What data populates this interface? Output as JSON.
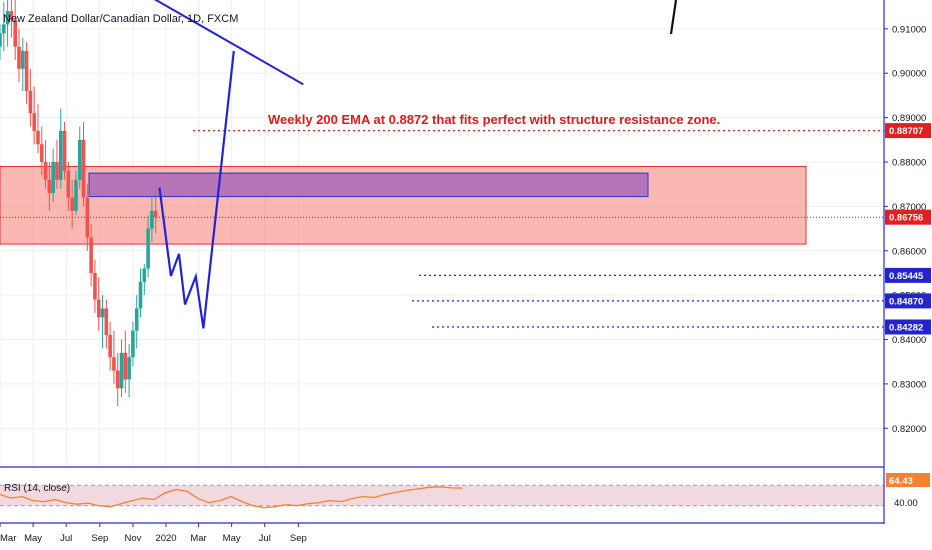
{
  "chart_data": {
    "type": "candlestick",
    "title": "New Zealand Dollar/Canadian Dollar, 1D, FXCM",
    "annotation": "Weekly 200 EMA at 0.8872 that fits perfect with structure resistance zone.",
    "x_ticks": [
      "Mar",
      "May",
      "Jul",
      "Sep",
      "Nov",
      "2020",
      "Mar",
      "May",
      "Jul",
      "Sep"
    ],
    "ylim": [
      0.8115,
      0.9165
    ],
    "y_ticks": [
      "0.91000",
      "0.90000",
      "0.89000",
      "0.88000",
      "0.87000",
      "0.86000",
      "0.85000",
      "0.84000",
      "0.83000",
      "0.82000"
    ],
    "price_badges": [
      {
        "label": "0.88707",
        "value": 0.88707,
        "color": "#e02020"
      },
      {
        "label": "0.86756",
        "value": 0.86756,
        "color": "#e02020"
      },
      {
        "label": "0.85445",
        "value": 0.85445,
        "color": "#2424cc"
      },
      {
        "label": "0.84870",
        "value": 0.8487,
        "color": "#2424cc"
      },
      {
        "label": "0.84282",
        "value": 0.84282,
        "color": "#2424cc"
      }
    ],
    "resistance_zone": {
      "from": 0.8615,
      "to": 0.879,
      "color": "#f57e74"
    },
    "purple_zone": {
      "from": 0.8722,
      "to": 0.8775,
      "color": "#9c5db8"
    },
    "support_levels": [
      0.85445,
      0.8487,
      0.84282
    ],
    "ema_level": 0.88707,
    "current_price": 0.86756,
    "projection_path": [
      {
        "date": "2019-12-20",
        "price": 0.8742
      },
      {
        "date": "2020-01-10",
        "price": 0.8543
      },
      {
        "date": "2020-01-25",
        "price": 0.8593
      },
      {
        "date": "2020-02-05",
        "price": 0.8479
      },
      {
        "date": "2020-02-25",
        "price": 0.8542
      },
      {
        "date": "2020-03-10",
        "price": 0.8425
      },
      {
        "date": "2020-05-05",
        "price": 0.905
      }
    ],
    "trendline": [
      {
        "date": "2019-11-15",
        "price": 0.9185
      },
      {
        "date": "2020-09-10",
        "price": 0.8975
      }
    ],
    "ohlc": [
      {
        "date": "2019-03-01",
        "o": 0.906,
        "h": 0.911,
        "l": 0.903,
        "c": 0.909
      },
      {
        "date": "2019-03-08",
        "o": 0.909,
        "h": 0.916,
        "l": 0.905,
        "c": 0.911
      },
      {
        "date": "2019-03-15",
        "o": 0.911,
        "h": 0.918,
        "l": 0.906,
        "c": 0.914
      },
      {
        "date": "2019-03-22",
        "o": 0.914,
        "h": 0.919,
        "l": 0.908,
        "c": 0.912
      },
      {
        "date": "2019-03-29",
        "o": 0.912,
        "h": 0.917,
        "l": 0.903,
        "c": 0.906
      },
      {
        "date": "2019-04-05",
        "o": 0.906,
        "h": 0.91,
        "l": 0.898,
        "c": 0.901
      },
      {
        "date": "2019-04-12",
        "o": 0.901,
        "h": 0.908,
        "l": 0.896,
        "c": 0.905
      },
      {
        "date": "2019-04-19",
        "o": 0.905,
        "h": 0.907,
        "l": 0.893,
        "c": 0.896
      },
      {
        "date": "2019-04-26",
        "o": 0.896,
        "h": 0.901,
        "l": 0.888,
        "c": 0.891
      },
      {
        "date": "2019-05-03",
        "o": 0.891,
        "h": 0.897,
        "l": 0.884,
        "c": 0.887
      },
      {
        "date": "2019-05-10",
        "o": 0.887,
        "h": 0.893,
        "l": 0.882,
        "c": 0.884
      },
      {
        "date": "2019-05-17",
        "o": 0.884,
        "h": 0.888,
        "l": 0.877,
        "c": 0.88
      },
      {
        "date": "2019-05-24",
        "o": 0.88,
        "h": 0.885,
        "l": 0.874,
        "c": 0.876
      },
      {
        "date": "2019-05-31",
        "o": 0.876,
        "h": 0.88,
        "l": 0.869,
        "c": 0.873
      },
      {
        "date": "2019-06-07",
        "o": 0.873,
        "h": 0.883,
        "l": 0.871,
        "c": 0.88
      },
      {
        "date": "2019-06-14",
        "o": 0.88,
        "h": 0.885,
        "l": 0.874,
        "c": 0.876
      },
      {
        "date": "2019-06-21",
        "o": 0.876,
        "h": 0.892,
        "l": 0.874,
        "c": 0.887
      },
      {
        "date": "2019-06-28",
        "o": 0.887,
        "h": 0.889,
        "l": 0.876,
        "c": 0.878
      },
      {
        "date": "2019-07-05",
        "o": 0.878,
        "h": 0.88,
        "l": 0.869,
        "c": 0.872
      },
      {
        "date": "2019-07-12",
        "o": 0.872,
        "h": 0.876,
        "l": 0.865,
        "c": 0.869
      },
      {
        "date": "2019-07-19",
        "o": 0.869,
        "h": 0.878,
        "l": 0.868,
        "c": 0.876
      },
      {
        "date": "2019-07-26",
        "o": 0.876,
        "h": 0.888,
        "l": 0.874,
        "c": 0.885
      },
      {
        "date": "2019-08-02",
        "o": 0.885,
        "h": 0.889,
        "l": 0.87,
        "c": 0.872
      },
      {
        "date": "2019-08-09",
        "o": 0.872,
        "h": 0.875,
        "l": 0.86,
        "c": 0.863
      },
      {
        "date": "2019-08-16",
        "o": 0.863,
        "h": 0.866,
        "l": 0.852,
        "c": 0.855
      },
      {
        "date": "2019-08-23",
        "o": 0.855,
        "h": 0.858,
        "l": 0.846,
        "c": 0.849
      },
      {
        "date": "2019-08-30",
        "o": 0.849,
        "h": 0.854,
        "l": 0.842,
        "c": 0.845
      },
      {
        "date": "2019-09-06",
        "o": 0.845,
        "h": 0.85,
        "l": 0.838,
        "c": 0.847
      },
      {
        "date": "2019-09-13",
        "o": 0.847,
        "h": 0.849,
        "l": 0.838,
        "c": 0.841
      },
      {
        "date": "2019-09-20",
        "o": 0.841,
        "h": 0.844,
        "l": 0.833,
        "c": 0.836
      },
      {
        "date": "2019-09-27",
        "o": 0.836,
        "h": 0.842,
        "l": 0.83,
        "c": 0.833
      },
      {
        "date": "2019-10-04",
        "o": 0.833,
        "h": 0.837,
        "l": 0.825,
        "c": 0.829
      },
      {
        "date": "2019-10-11",
        "o": 0.829,
        "h": 0.84,
        "l": 0.827,
        "c": 0.837
      },
      {
        "date": "2019-10-18",
        "o": 0.837,
        "h": 0.842,
        "l": 0.828,
        "c": 0.831
      },
      {
        "date": "2019-10-25",
        "o": 0.831,
        "h": 0.839,
        "l": 0.827,
        "c": 0.836
      },
      {
        "date": "2019-11-01",
        "o": 0.836,
        "h": 0.844,
        "l": 0.834,
        "c": 0.842
      },
      {
        "date": "2019-11-08",
        "o": 0.842,
        "h": 0.85,
        "l": 0.838,
        "c": 0.847
      },
      {
        "date": "2019-11-15",
        "o": 0.847,
        "h": 0.856,
        "l": 0.845,
        "c": 0.853
      },
      {
        "date": "2019-11-22",
        "o": 0.853,
        "h": 0.857,
        "l": 0.85,
        "c": 0.856
      },
      {
        "date": "2019-11-29",
        "o": 0.856,
        "h": 0.868,
        "l": 0.854,
        "c": 0.865
      },
      {
        "date": "2019-12-06",
        "o": 0.865,
        "h": 0.872,
        "l": 0.862,
        "c": 0.869
      },
      {
        "date": "2019-12-13",
        "o": 0.869,
        "h": 0.873,
        "l": 0.864,
        "c": 0.8676
      }
    ]
  },
  "rsi": {
    "label": "RSI (14, close)",
    "value_label": "64.43",
    "level_label": "40.00",
    "upper": 70,
    "lower": 30,
    "values": [
      52,
      45,
      48,
      40,
      38,
      42,
      36,
      33,
      35,
      30,
      28,
      34,
      40,
      45,
      42,
      55,
      62,
      58,
      44,
      36,
      40,
      48,
      38,
      30,
      26,
      28,
      32,
      30,
      34,
      36,
      40,
      38,
      44,
      48,
      46,
      52,
      56,
      60,
      63,
      66,
      67,
      65,
      64.43
    ]
  }
}
